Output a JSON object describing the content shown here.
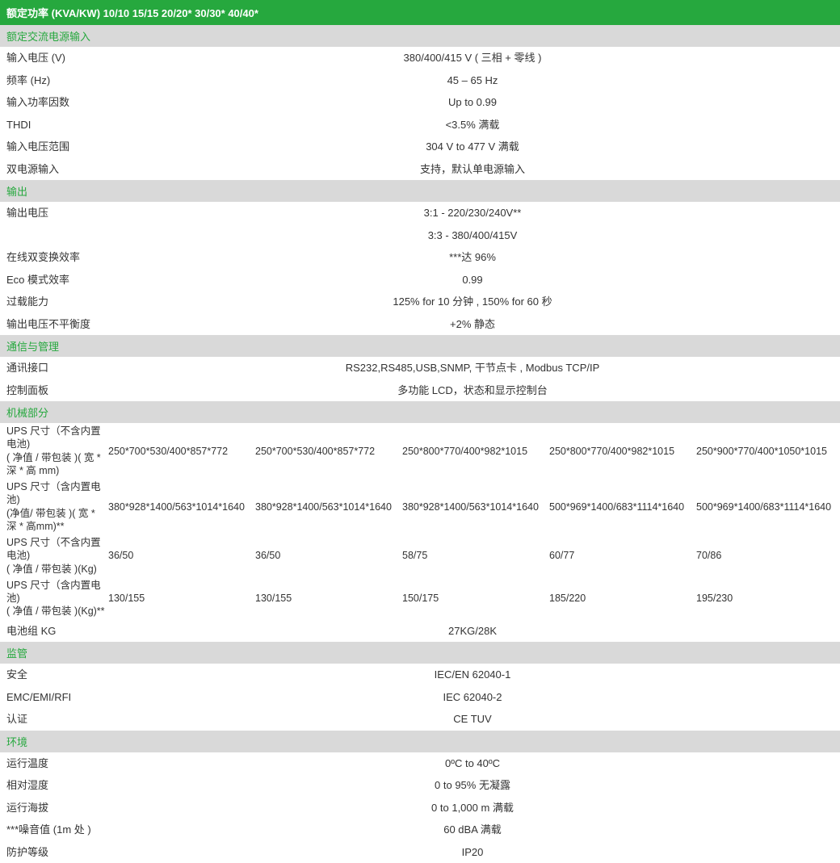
{
  "header": "额定功率 (KVA/KW) 10/10 15/15 20/20* 30/30* 40/40*",
  "sections": {
    "input": {
      "title": "额定交流电源输入",
      "rows": [
        {
          "label": "输入电压 (V)",
          "value": "380/400/415 V ( 三相 + 零线 )"
        },
        {
          "label": "频率 (Hz)",
          "value": "45 – 65 Hz"
        },
        {
          "label": "输入功率因数",
          "value": "Up to 0.99"
        },
        {
          "label": "THDI",
          "value": "<3.5% 满载"
        },
        {
          "label": "输入电压范围",
          "value": "304 V to 477 V 满载"
        },
        {
          "label": "双电源输入",
          "value": "支持，默认单电源输入"
        }
      ]
    },
    "output": {
      "title": "输出",
      "rows": [
        {
          "label": "输出电压",
          "value": "3:1 - 220/230/240V**",
          "value2": "3:3 - 380/400/415V"
        },
        {
          "label": "在线双变换效率",
          "value": "***达 96%"
        },
        {
          "label": "Eco 模式效率",
          "value": "0.99"
        },
        {
          "label": "过载能力",
          "value": "125% for 10 分钟 , 150% for 60 秒"
        },
        {
          "label": "输出电压不平衡度",
          "value": "+2% 静态"
        }
      ]
    },
    "comm": {
      "title": "通信与管理",
      "rows": [
        {
          "label": "通讯接口",
          "value": "RS232,RS485,USB,SNMP, 干节点卡 , Modbus TCP/IP"
        },
        {
          "label": "控制面板",
          "value": "多功能 LCD，状态和显示控制台"
        }
      ]
    },
    "mech": {
      "title": "机械部分",
      "multirows": [
        {
          "label": "UPS 尺寸（不含内置电池)\n( 净值 / 带包装 )( 宽 * 深 * 高 mm)",
          "vals": [
            "250*700*530/400*857*772",
            "250*700*530/400*857*772",
            "250*800*770/400*982*1015",
            "250*800*770/400*982*1015",
            "250*900*770/400*1050*1015"
          ]
        },
        {
          "label": "UPS 尺寸（含内置电池)\n(净值/ 带包装 )( 宽 * 深 * 高mm)**",
          "vals": [
            "380*928*1400/563*1014*1640",
            "380*928*1400/563*1014*1640",
            "380*928*1400/563*1014*1640",
            "500*969*1400/683*1114*1640",
            "500*969*1400/683*1114*1640"
          ]
        },
        {
          "label": "UPS 尺寸（不含内置电池)\n( 净值 / 带包装 )(Kg)",
          "vals": [
            "36/50",
            "36/50",
            "58/75",
            "60/77",
            "70/86"
          ]
        },
        {
          "label": "UPS 尺寸（含内置电池)\n( 净值 / 带包装 )(Kg)**",
          "vals": [
            "130/155",
            "130/155",
            "150/175",
            "185/220",
            "195/230"
          ]
        }
      ],
      "battery": {
        "label": "电池组 KG",
        "value": "27KG/28K"
      }
    },
    "reg": {
      "title": "监管",
      "rows": [
        {
          "label": "安全",
          "value": "IEC/EN 62040-1"
        },
        {
          "label": "EMC/EMI/RFI",
          "value": "IEC 62040-2"
        },
        {
          "label": "认证",
          "value": "CE TUV"
        }
      ]
    },
    "env": {
      "title": "环境",
      "rows": [
        {
          "label": "运行温度",
          "value": "0ºC to 40ºC"
        },
        {
          "label": "相对湿度",
          "value": "0 to 95% 无凝露"
        },
        {
          "label": "运行海拔",
          "value": "0 to 1,000 m 满载"
        },
        {
          "label": "***噪音值 (1m 处 )",
          "value": "60 dBA 满载"
        },
        {
          "label": "防护等级",
          "value": "IP20"
        }
      ]
    }
  }
}
